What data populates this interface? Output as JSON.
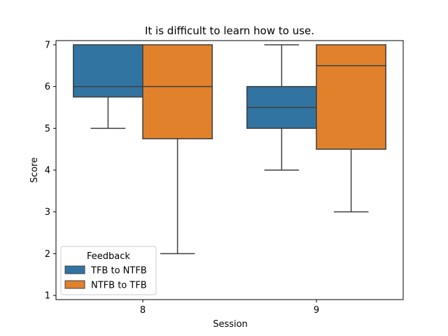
{
  "chart_data": {
    "type": "box",
    "title": "It is difficult to learn how to use.",
    "xlabel": "Session",
    "ylabel": "Score",
    "categories": [
      "8",
      "9"
    ],
    "ylim": [
      0.9,
      7.1
    ],
    "yticks": [
      "1",
      "2",
      "3",
      "4",
      "5",
      "6",
      "7"
    ],
    "grid": false,
    "legend": {
      "title": "Feedback",
      "placement": "lower-left"
    },
    "series": [
      {
        "name": "TFB to NTFB",
        "color": "#3274a1",
        "boxes": [
          {
            "category": "8",
            "whisker_low": 5,
            "q1": 5.75,
            "median": 6,
            "q3": 7,
            "whisker_high": 7
          },
          {
            "category": "9",
            "whisker_low": 4,
            "q1": 5,
            "median": 5.5,
            "q3": 6,
            "whisker_high": 7
          }
        ]
      },
      {
        "name": "NTFB to TFB",
        "color": "#e1812c",
        "boxes": [
          {
            "category": "8",
            "whisker_low": 2,
            "q1": 4.75,
            "median": 6,
            "q3": 7,
            "whisker_high": 7
          },
          {
            "category": "9",
            "whisker_low": 3,
            "q1": 4.5,
            "median": 6.5,
            "q3": 7,
            "whisker_high": 7
          }
        ]
      }
    ]
  }
}
